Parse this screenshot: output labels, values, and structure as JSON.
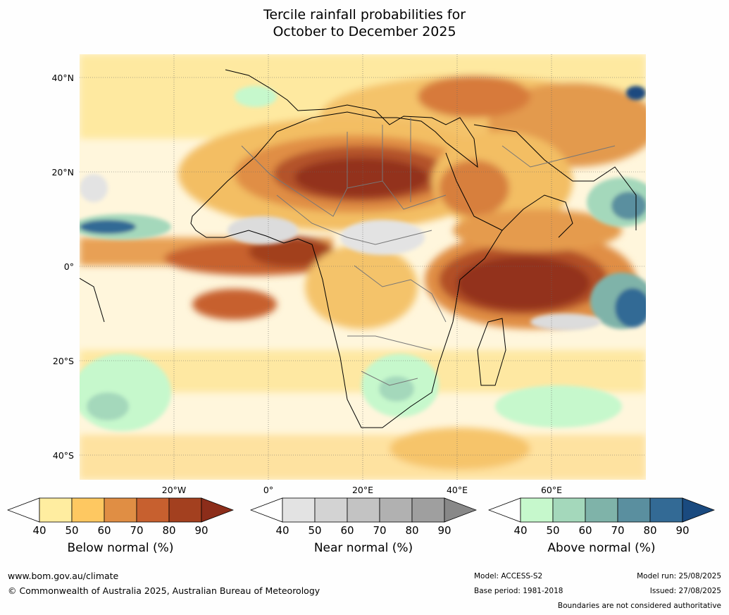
{
  "title": {
    "line1": "Tercile rainfall probabilities for",
    "line2": "October to December 2025"
  },
  "axes": {
    "lat_labels": [
      "40°N",
      "20°N",
      "0°",
      "20°S",
      "40°S"
    ],
    "lon_labels": [
      "20°W",
      "0°",
      "20°E",
      "40°E",
      "60°E"
    ]
  },
  "colorbars": [
    {
      "label": "Below normal (%)",
      "ticks": [
        "40",
        "50",
        "60",
        "70",
        "80",
        "90"
      ],
      "colors": [
        "#ffffff",
        "#ffeda0",
        "#fec861",
        "#e08e44",
        "#c7602f",
        "#a3401f",
        "#8c2d1a"
      ]
    },
    {
      "label": "Near normal (%)",
      "ticks": [
        "40",
        "50",
        "60",
        "70",
        "80",
        "90"
      ],
      "colors": [
        "#ffffff",
        "#e3e3e3",
        "#d3d3d3",
        "#c3c3c3",
        "#b1b1b1",
        "#9f9f9f",
        "#888888"
      ]
    },
    {
      "label": "Above normal (%)",
      "ticks": [
        "40",
        "50",
        "60",
        "70",
        "80",
        "90"
      ],
      "colors": [
        "#ffffff",
        "#c6f8cc",
        "#a4d8bb",
        "#7fb3a9",
        "#5a8f9f",
        "#336a95",
        "#1a4a7f"
      ]
    }
  ],
  "footer": {
    "website": "www.bom.gov.au/climate",
    "copyright": "© Commonwealth of Australia 2025, Australian Bureau of Meteorology",
    "model": "Model: ACCESS-S2",
    "base_period": "Base period: 1981-2018",
    "model_run": "Model run: 25/08/2025",
    "issued": "Issued: 27/08/2025",
    "disclaimer": "Boundaries are not considered authoritative"
  }
}
